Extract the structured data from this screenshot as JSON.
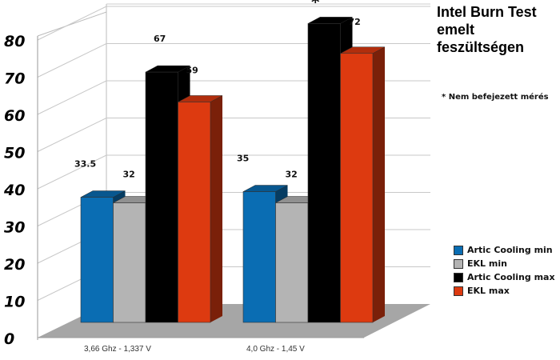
{
  "chart_data": {
    "type": "bar",
    "title": "Intel Burn Test emelt feszültségen",
    "note": "* Nem befejezett mérés",
    "categories": [
      "3,66 Ghz - 1,337 V",
      "4,0 Ghz - 1,45 V"
    ],
    "ylim": [
      0,
      80
    ],
    "yticks": [
      "0",
      "10",
      "20",
      "30",
      "40",
      "50",
      "60",
      "70",
      "80"
    ],
    "grid": true,
    "legend_position": "right",
    "series": [
      {
        "name": "Artic Cooling min",
        "color": "#0a6db3",
        "values": [
          33.5,
          35
        ],
        "labels": [
          "33.5",
          "35"
        ]
      },
      {
        "name": "EKL min",
        "color": "#b4b4b4",
        "values": [
          32,
          32
        ],
        "labels": [
          "32",
          "32"
        ]
      },
      {
        "name": "Artic Cooling max",
        "color": "#000000",
        "values": [
          67,
          80
        ],
        "labels": [
          "67",
          "*"
        ]
      },
      {
        "name": "EKL max",
        "color": "#dd3a10",
        "values": [
          59,
          72
        ],
        "labels": [
          "59",
          "72"
        ]
      }
    ]
  }
}
